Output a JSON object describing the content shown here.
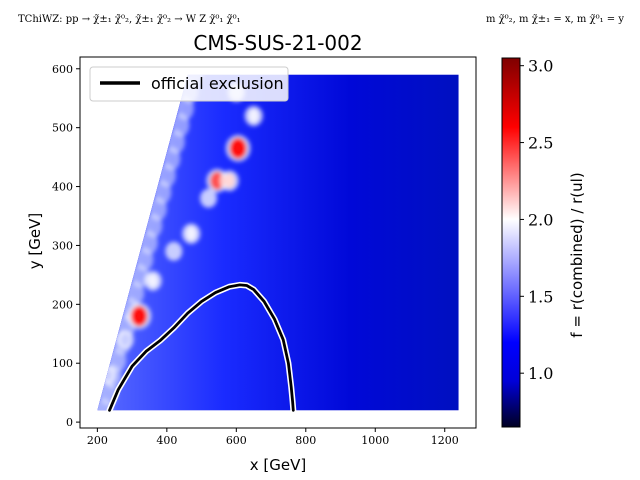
{
  "header": {
    "model_label": "TChiWZ: pp → χ̃±₁ χ̃⁰₂, χ̃±₁ χ̃⁰₂ → W Z χ̃⁰₁ χ̃⁰₁",
    "mass_convention": "m χ̃⁰₂, m χ̃±₁ = x, m χ̃⁰₁ = y"
  },
  "chart_data": {
    "type": "heatmap",
    "title": "CMS-SUS-21-002",
    "xlabel": "x [GeV]",
    "ylabel": "y [GeV]",
    "xlim": [
      150,
      1290
    ],
    "ylim": [
      -10,
      620
    ],
    "xticks": [
      200,
      400,
      600,
      800,
      1000,
      1200
    ],
    "yticks": [
      0,
      100,
      200,
      300,
      400,
      500,
      600
    ],
    "grid": false,
    "legend": {
      "placement": "top-left",
      "entries": [
        "official exclusion"
      ]
    },
    "colorbar": {
      "label": "f = r(combined) / r(ul)",
      "range": [
        0.65,
        3.05
      ],
      "ticks": [
        1.0,
        1.5,
        2.0,
        2.5,
        3.0
      ],
      "colormap": [
        "#000022",
        "#0000d8",
        "#0000ff",
        "#ffffff",
        "#ff0000",
        "#7f0000"
      ]
    },
    "field": {
      "x_range": [
        200,
        1240
      ],
      "y_range": [
        20,
        590
      ],
      "diagonal_edge": {
        "x_at_y20": 200,
        "x_at_y590": 460
      },
      "background_low": 0.85,
      "hotspots": [
        {
          "x": 605,
          "y": 465,
          "value": 2.9
        },
        {
          "x": 320,
          "y": 180,
          "value": 2.8
        },
        {
          "x": 545,
          "y": 410,
          "value": 2.4
        },
        {
          "x": 580,
          "y": 410,
          "value": 1.9
        },
        {
          "x": 470,
          "y": 320,
          "value": 1.8
        },
        {
          "x": 360,
          "y": 240,
          "value": 1.7
        },
        {
          "x": 650,
          "y": 520,
          "value": 1.8
        },
        {
          "x": 520,
          "y": 380,
          "value": 1.6
        },
        {
          "x": 280,
          "y": 140,
          "value": 1.6
        },
        {
          "x": 230,
          "y": 80,
          "value": 1.5
        },
        {
          "x": 420,
          "y": 290,
          "value": 1.6
        },
        {
          "x": 600,
          "y": 560,
          "value": 1.6
        }
      ]
    },
    "series": [
      {
        "name": "official exclusion",
        "color": "#000000",
        "x": [
          235,
          260,
          300,
          340,
          380,
          420,
          460,
          500,
          540,
          580,
          610,
          630,
          650,
          680,
          710,
          735,
          750,
          758,
          762,
          764
        ],
        "y": [
          20,
          55,
          95,
          120,
          138,
          160,
          185,
          205,
          220,
          230,
          233,
          232,
          225,
          205,
          175,
          140,
          100,
          60,
          35,
          20
        ]
      }
    ]
  }
}
